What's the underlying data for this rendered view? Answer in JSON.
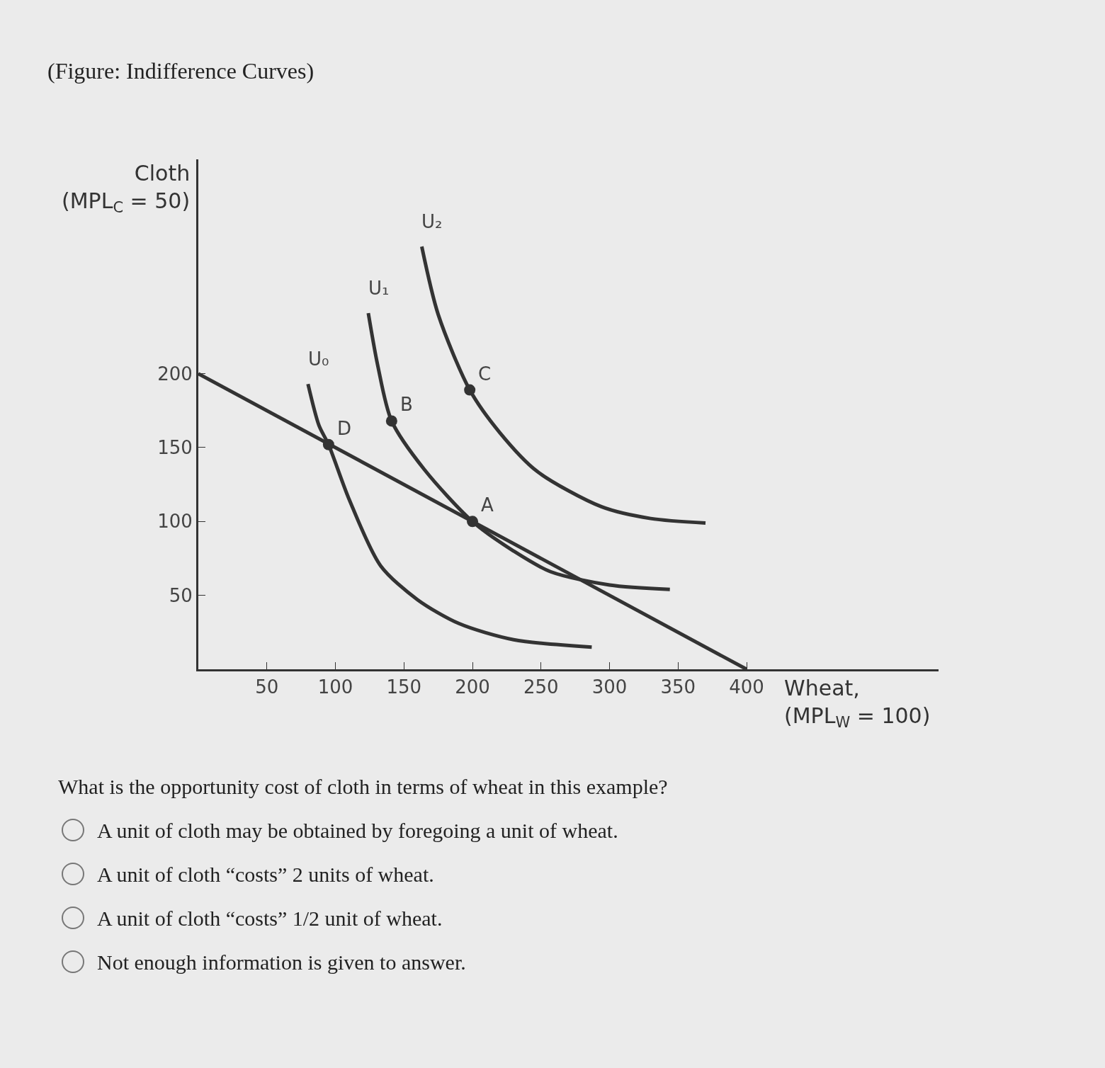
{
  "chart_data": {
    "type": "line",
    "title": "(Figure: Indifference Curves)",
    "xlabel": "Wheat,\n(MPL$_{W}$ = 100)",
    "ylabel": "Cloth\n(MPL$_{C}$ = 50)",
    "xlim": [
      0,
      540
    ],
    "ylim": [
      0,
      345
    ],
    "xticks": [
      50,
      100,
      150,
      200,
      250,
      300,
      350,
      400
    ],
    "yticks": [
      50,
      100,
      150,
      200
    ],
    "grid": false,
    "series": [
      {
        "color": "#333333",
        "x": [
          0,
          400
        ],
        "values": [
          200,
          0
        ]
      },
      {
        "name": "U₀",
        "color": "#333333",
        "x": [
          80,
          88,
          95,
          110,
          133,
          160,
          190,
          230,
          287
        ],
        "values": [
          193,
          165,
          152,
          115,
          70,
          47,
          31,
          20,
          15
        ]
      },
      {
        "name": "U₁",
        "color": "#333333",
        "x": [
          124,
          131,
          141,
          165,
          200,
          230,
          257,
          300,
          344
        ],
        "values": [
          241,
          205,
          168,
          135,
          100,
          80,
          66,
          57,
          54
        ]
      },
      {
        "name": "U₂",
        "color": "#333333",
        "x": [
          163,
          175,
          198,
          220,
          247,
          294,
          330,
          370
        ],
        "values": [
          286,
          240,
          189,
          160,
          134,
          110,
          102,
          99
        ]
      },
      {
        "type": "scatter",
        "marker": "circle",
        "color": "#333333",
        "x": [
          200,
          141,
          198,
          95
        ],
        "values": [
          100,
          168,
          189,
          152
        ]
      }
    ],
    "annotations": [
      {
        "text": "A",
        "x": 200,
        "y": 100
      },
      {
        "text": "B",
        "x": 141,
        "y": 168
      },
      {
        "text": "C",
        "x": 198,
        "y": 189
      },
      {
        "text": "D",
        "x": 95,
        "y": 152
      },
      "What is the opportunity cost of cloth in terms of wheat in this example?",
      "A unit of cloth may be obtained by foregoing a unit of wheat.",
      "A unit of cloth “costs” 2 units of wheat.",
      "A unit of cloth “costs” 1/2 unit of wheat.",
      "Not enough information is given to answer."
    ]
  }
}
